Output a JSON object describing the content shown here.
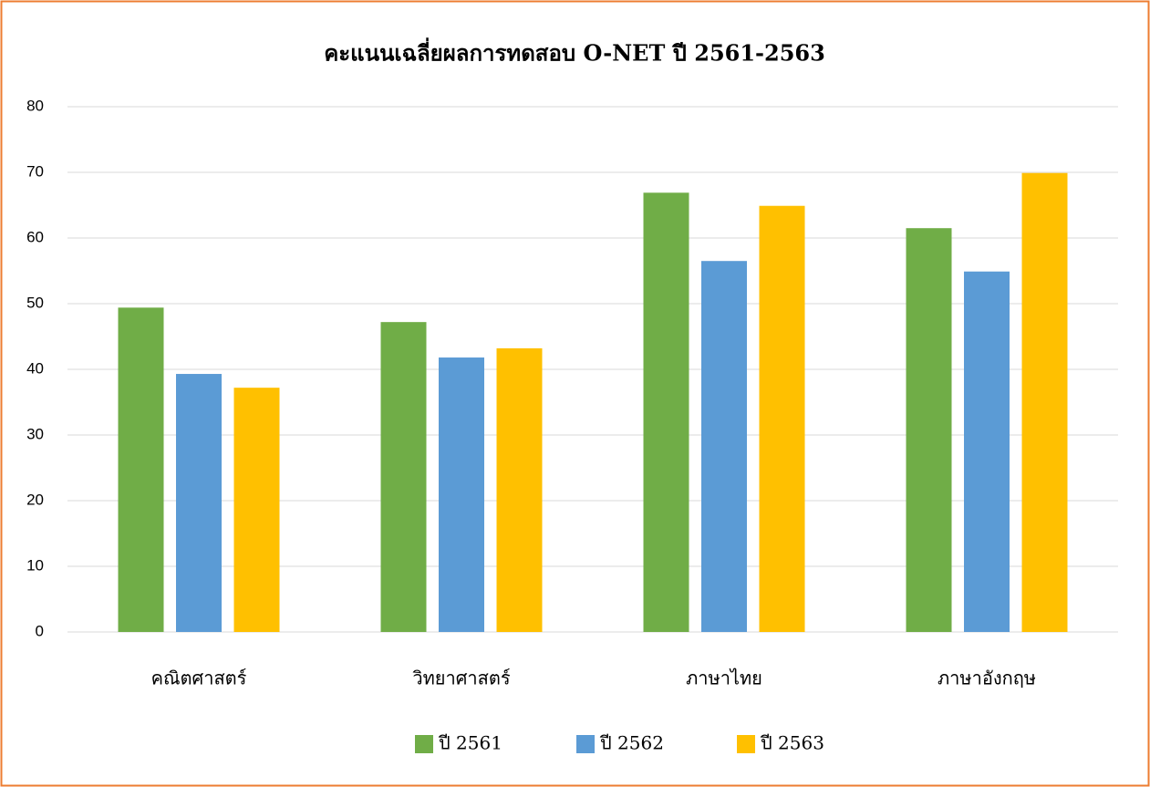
{
  "chart_data": {
    "type": "bar",
    "title": "คะแนนเฉลี่ยผลการทดสอบ O-NET   ปี  2561-2563",
    "categories": [
      "คณิตศาสตร์",
      "วิทยาศาสตร์",
      "ภาษาไทย",
      "ภาษาอังกฤษ"
    ],
    "series": [
      {
        "name": "ปี 2561",
        "color": "#70ad47",
        "values": [
          49.4,
          47.2,
          66.9,
          61.5
        ]
      },
      {
        "name": "ปี 2562",
        "color": "#5b9bd5",
        "values": [
          39.3,
          41.8,
          56.5,
          54.9
        ]
      },
      {
        "name": "ปี 2563",
        "color": "#ffc000",
        "values": [
          37.2,
          43.2,
          64.9,
          69.9
        ]
      }
    ],
    "ylim": [
      0,
      80
    ],
    "yticks": [
      0,
      10,
      20,
      30,
      40,
      50,
      60,
      70,
      80
    ],
    "grid": true,
    "legend": "bottom"
  }
}
